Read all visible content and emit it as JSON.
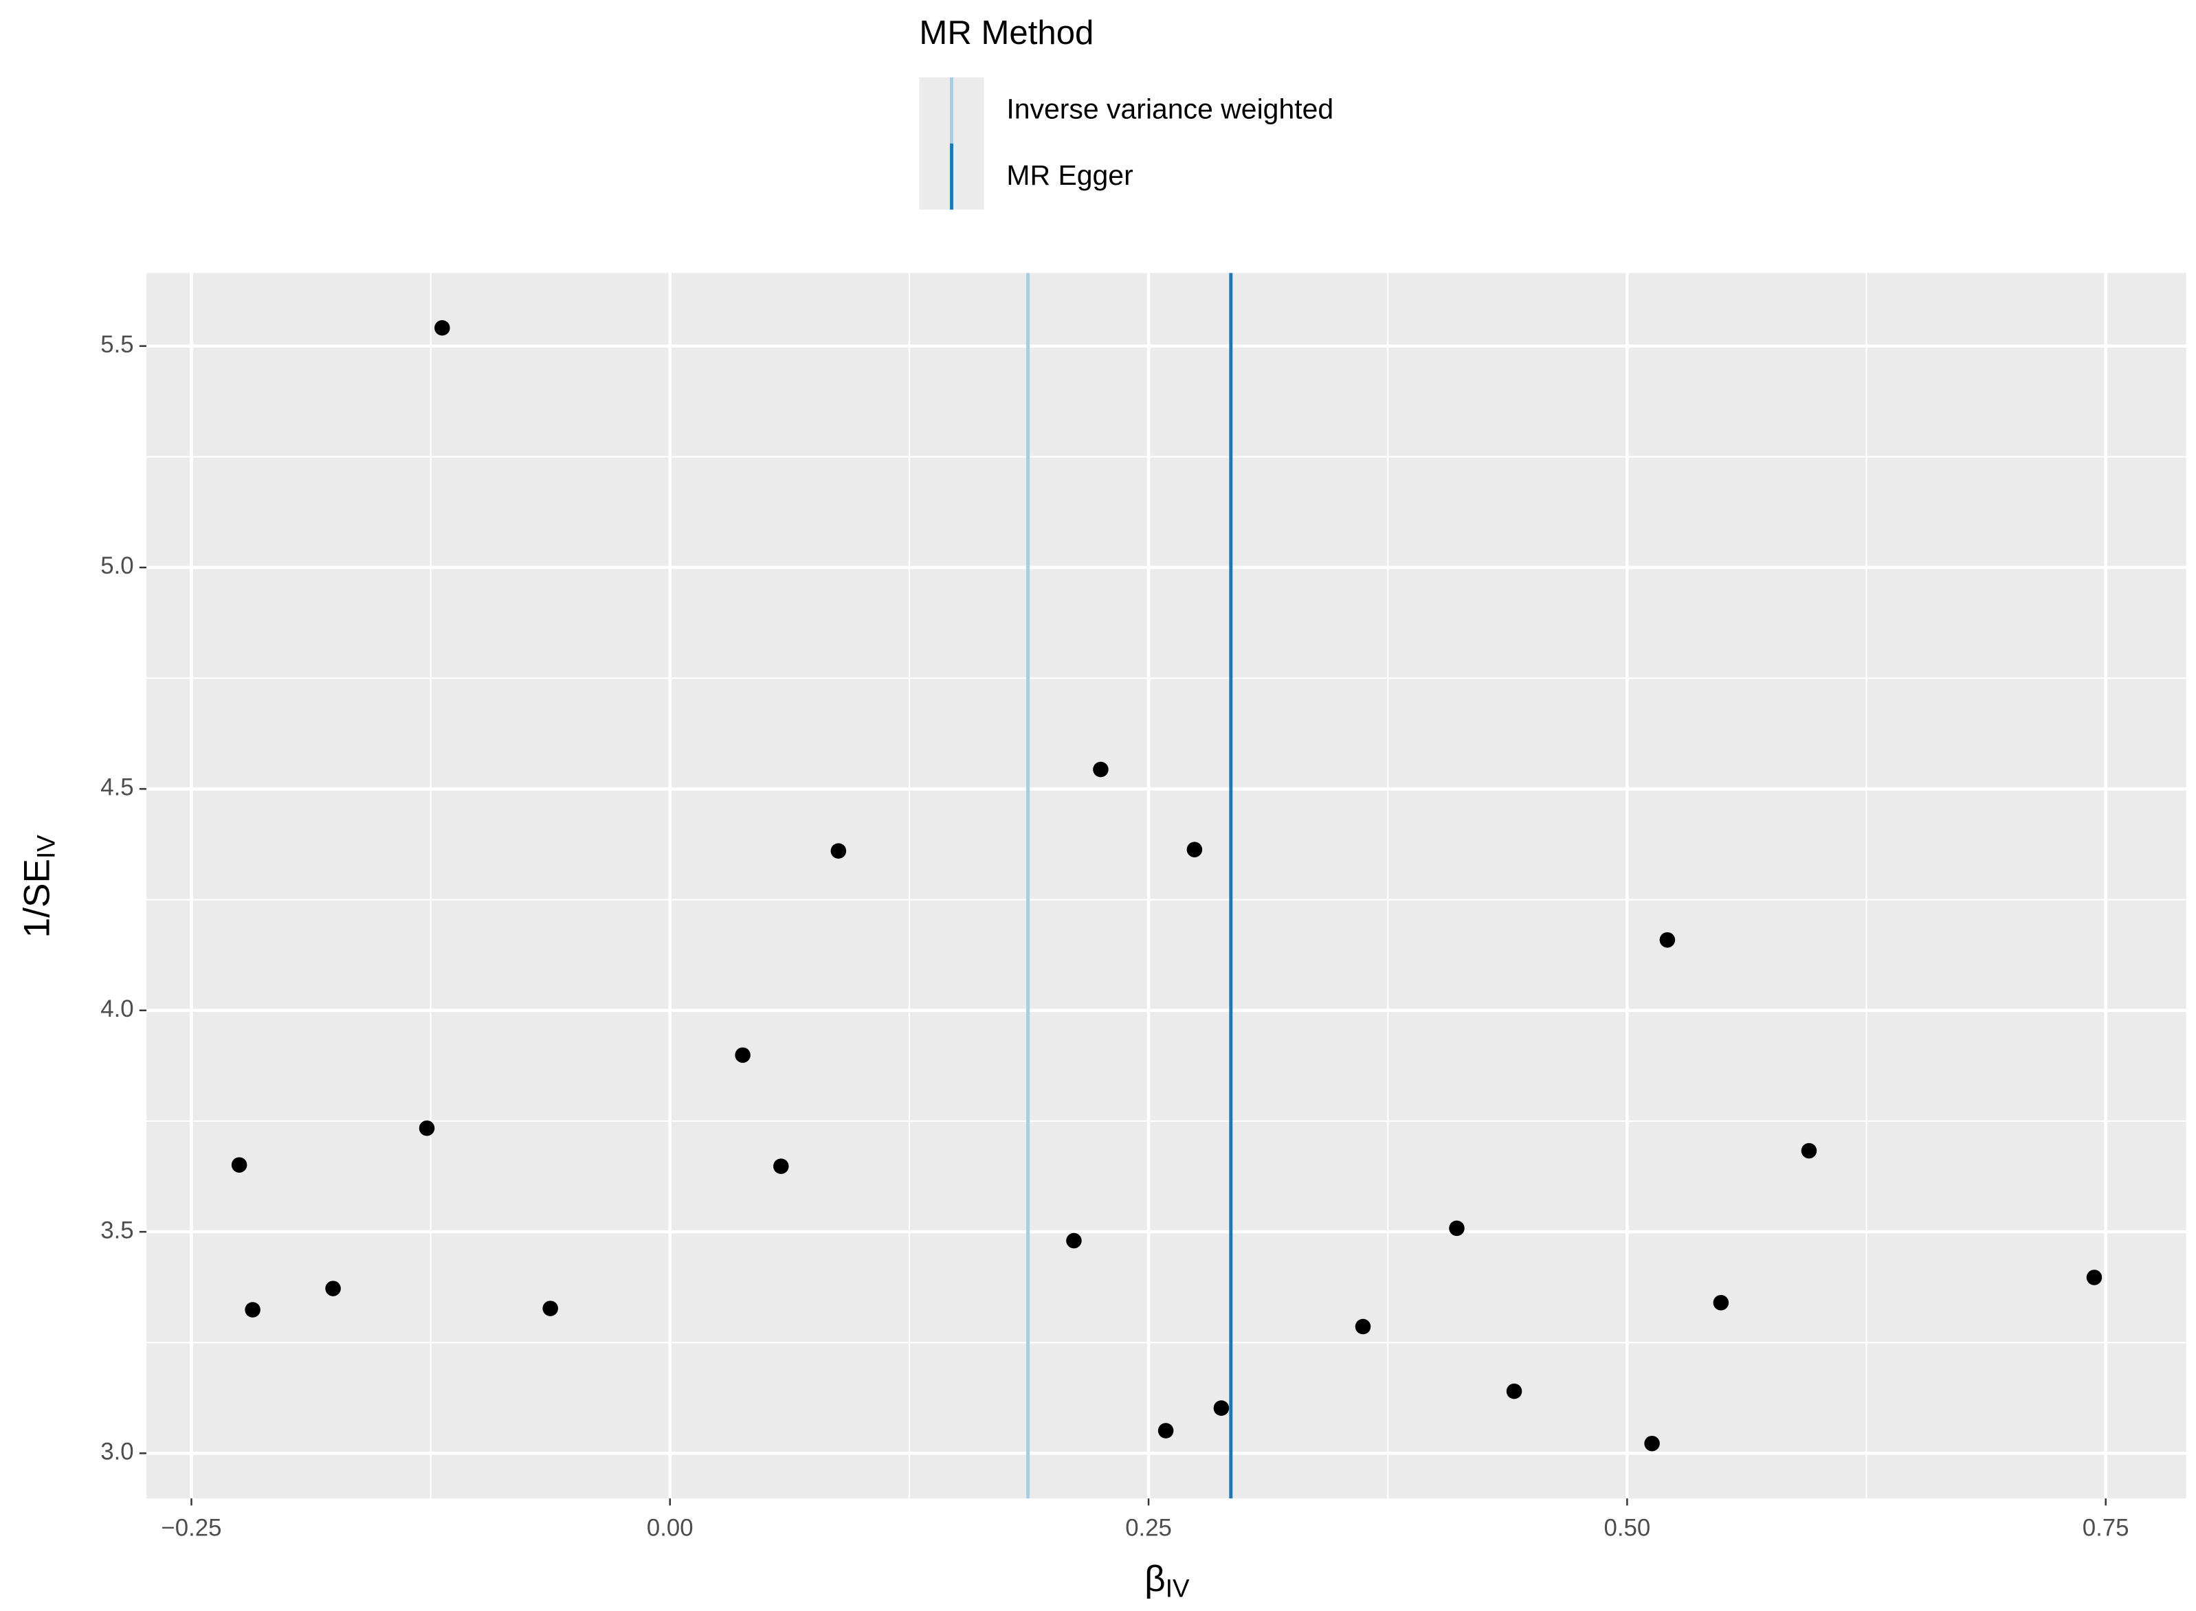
{
  "chart_data": {
    "type": "scatter",
    "xlabel": "β",
    "xlabel_sub": "IV",
    "ylabel": "1/SE",
    "ylabel_sub": "IV",
    "legend_title": "MR Method",
    "x": [
      -0.225,
      -0.218,
      -0.176,
      -0.127,
      -0.119,
      -0.0625,
      0.038,
      0.058,
      0.088,
      0.211,
      0.225,
      0.259,
      0.274,
      0.288,
      0.362,
      0.411,
      0.441,
      0.513,
      0.521,
      0.549,
      0.595,
      0.744
    ],
    "values": [
      3.651,
      3.324,
      3.372,
      3.734,
      5.541,
      3.327,
      3.899,
      3.648,
      4.36,
      3.48,
      4.544,
      3.051,
      4.363,
      3.102,
      3.286,
      3.508,
      3.14,
      3.022,
      4.159,
      3.34,
      3.683,
      3.397
    ],
    "color": "#000000",
    "lines": [
      {
        "name": "Inverse variance weighted",
        "color": "#a6cee3",
        "value": 0.187
      },
      {
        "name": "MR Egger",
        "color": "#1f78b4",
        "value": 0.293
      }
    ],
    "xlim": [
      -0.2735,
      0.792
    ],
    "ylim": [
      2.898,
      5.665
    ],
    "xticks": [
      {
        "value": -0.25,
        "label": "−0.25"
      },
      {
        "value": 0,
        "label": "0.00"
      },
      0.25,
      {
        "value": 0.5,
        "label": "0.50"
      },
      0.75
    ],
    "yticks": [
      {
        "value": 3,
        "label": "3.0"
      },
      3.5,
      {
        "value": 4,
        "label": "4.0"
      },
      4.5,
      {
        "value": 5,
        "label": "5.0"
      },
      5.5
    ],
    "grid": true,
    "minor_grid": true,
    "legend_position": "top"
  }
}
